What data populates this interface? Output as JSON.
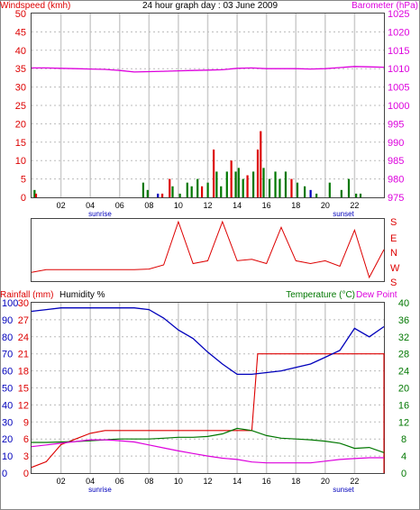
{
  "colors": {
    "red": "#dd0000",
    "magenta": "#dd00dd",
    "green": "#007700",
    "blue": "#0000bb",
    "frame": "#444444",
    "grid": "#cccccc"
  },
  "top": {
    "title": "24 hour graph day : 03 June 2009",
    "left_label": "Windspeed (kmh)",
    "right_label": "Barometer (hPa)",
    "sunrise_label": "sunrise",
    "sunset_label": "sunset"
  },
  "mid": {
    "direction_labels": [
      "S",
      "E",
      "N",
      "W",
      "S"
    ]
  },
  "bottom": {
    "rain_label": "Rainfall (mm)",
    "hum_label": "Humidity %",
    "temp_label": "Temperature (°C)",
    "dew_label": "Dew Point",
    "sunrise_label": "sunrise",
    "sunset_label": "sunset"
  },
  "chart_data": [
    {
      "type": "line",
      "x_ticks": [
        "02",
        "04",
        "06",
        "08",
        "10",
        "12",
        "14",
        "16",
        "18",
        "20",
        "22"
      ],
      "left_axis_ticks": [
        "0",
        "5",
        "10",
        "15",
        "20",
        "25",
        "30",
        "35",
        "40",
        "45",
        "50"
      ],
      "right_axis_ticks": [
        "975",
        "980",
        "985",
        "990",
        "995",
        "1000",
        "1005",
        "1010",
        "1015",
        "1020",
        "1025"
      ],
      "ylim_left": [
        0,
        50
      ],
      "ylim_right": [
        975,
        1025
      ],
      "series": [
        {
          "name": "Barometer",
          "axis": "right",
          "x": [
            0,
            1,
            2,
            3,
            4,
            5,
            6,
            7,
            8,
            9,
            10,
            11,
            12,
            13,
            14,
            15,
            16,
            17,
            18,
            19,
            20,
            21,
            22,
            23,
            24
          ],
          "values": [
            1010.2,
            1010.2,
            1010.1,
            1010,
            1009.9,
            1009.8,
            1009.5,
            1009.1,
            1009.2,
            1009.3,
            1009.4,
            1009.5,
            1009.6,
            1009.7,
            1010.1,
            1010.2,
            1010,
            1010,
            1010,
            1009.9,
            1010,
            1010.3,
            1010.6,
            1010.5,
            1010.4
          ]
        }
      ]
    },
    {
      "type": "line",
      "x": [
        0,
        1,
        2,
        3,
        4,
        5,
        6,
        7,
        8,
        9,
        10,
        11,
        12,
        13,
        14,
        15,
        16,
        17,
        18,
        19,
        20,
        21,
        22,
        23,
        24
      ],
      "values": [
        282,
        272,
        272,
        272,
        272,
        272,
        272,
        272,
        270,
        255,
        100,
        250,
        240,
        100,
        240,
        235,
        250,
        120,
        240,
        250,
        240,
        260,
        130,
        300,
        200
      ]
    },
    {
      "type": "line",
      "x_ticks": [
        "02",
        "04",
        "06",
        "08",
        "10",
        "12",
        "14",
        "16",
        "18",
        "20",
        "22"
      ],
      "left_axis_ticks": [
        "0",
        "10",
        "20",
        "30",
        "40",
        "50",
        "60",
        "70",
        "80",
        "90",
        "100"
      ],
      "rain_axis_ticks": [
        "0",
        "3",
        "6",
        "9",
        "12",
        "15",
        "18",
        "21",
        "24",
        "27",
        "30"
      ],
      "right_axis_ticks": [
        "0",
        "4",
        "8",
        "12",
        "16",
        "20",
        "24",
        "28",
        "32",
        "36",
        "40"
      ],
      "series": [
        {
          "name": "Humidity",
          "axis": "left",
          "x": [
            0,
            1,
            2,
            3,
            4,
            5,
            6,
            7,
            8,
            9,
            10,
            11,
            12,
            13,
            14,
            15,
            16,
            17,
            18,
            19,
            20,
            21,
            22,
            23,
            24
          ],
          "values": [
            95,
            96,
            97,
            97,
            97,
            97,
            97,
            97,
            96,
            91,
            84,
            79,
            71,
            64,
            58,
            58,
            59,
            60,
            62,
            64,
            68,
            72,
            85,
            80,
            86
          ]
        },
        {
          "name": "Rainfall",
          "axis": "rain",
          "x": [
            0,
            1,
            2,
            3,
            4,
            5,
            6,
            7,
            8,
            9,
            10,
            11,
            12,
            13,
            14,
            15,
            15.4,
            16,
            17,
            18,
            19,
            20,
            21,
            22,
            23,
            24
          ],
          "values": [
            1,
            2,
            5,
            6,
            7,
            7.5,
            7.5,
            7.5,
            7.5,
            7.5,
            7.5,
            7.5,
            7.5,
            7.5,
            7.5,
            7.5,
            21,
            21,
            21,
            21,
            21,
            21,
            21,
            21,
            21,
            21
          ]
        },
        {
          "name": "Temperature",
          "axis": "right",
          "x": [
            0,
            1,
            2,
            3,
            4,
            5,
            6,
            7,
            8,
            9,
            10,
            11,
            12,
            13,
            14,
            15,
            16,
            17,
            18,
            19,
            20,
            21,
            22,
            23,
            24
          ],
          "values": [
            7.2,
            7.2,
            7.3,
            7.4,
            7.6,
            7.8,
            8,
            8,
            8,
            8.2,
            8.4,
            8.4,
            8.6,
            9.2,
            10.5,
            10,
            8.8,
            8.2,
            8,
            7.8,
            7.5,
            7,
            5.8,
            6,
            4.8
          ]
        },
        {
          "name": "Dew Point",
          "axis": "right",
          "x": [
            0,
            1,
            2,
            3,
            4,
            5,
            6,
            7,
            8,
            9,
            10,
            11,
            12,
            13,
            14,
            15,
            16,
            17,
            18,
            19,
            20,
            21,
            22,
            23,
            24
          ],
          "values": [
            6.2,
            6.6,
            7,
            7.4,
            7.8,
            7.8,
            7.6,
            7.3,
            6.6,
            5.9,
            5.2,
            4.6,
            4,
            3.5,
            3.2,
            2.6,
            2.4,
            2.4,
            2.4,
            2.4,
            2.8,
            3.2,
            3.4,
            3.6,
            3.6
          ]
        }
      ]
    }
  ]
}
